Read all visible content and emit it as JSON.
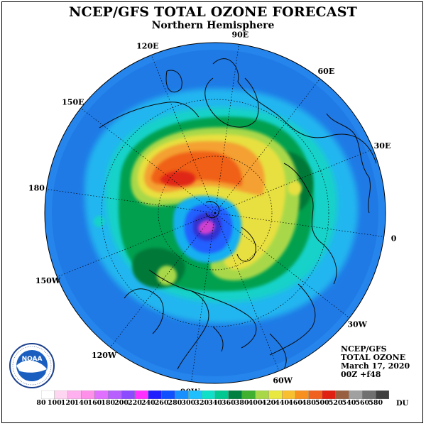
{
  "title": "NCEP/GFS TOTAL OZONE FORECAST",
  "subtitle": "Northern Hemisphere",
  "lon_labels": [
    "90E",
    "60E",
    "30E",
    "0",
    "30W",
    "60W",
    "90W",
    "120W",
    "150W",
    "180",
    "150E",
    "120E"
  ],
  "info": {
    "line1": "NCEP/GFS",
    "line2": "TOTAL OZONE",
    "line3": "March 17, 2020",
    "line4": "00Z +f48"
  },
  "scale": {
    "ticks": [
      "80",
      "100",
      "120",
      "140",
      "160",
      "180",
      "200",
      "220",
      "240",
      "260",
      "280",
      "300",
      "320",
      "340",
      "360",
      "380",
      "400",
      "420",
      "440",
      "460",
      "480",
      "500",
      "520",
      "540",
      "560",
      "580"
    ],
    "unit": "DU",
    "colors": [
      "#ffffff",
      "#ffd6f2",
      "#ffb0ee",
      "#ff90ea",
      "#e070ff",
      "#b860ff",
      "#8c4bff",
      "#ff30ff",
      "#2020ff",
      "#1050ff",
      "#1890ff",
      "#20c0ff",
      "#10e0c8",
      "#00c890",
      "#008040",
      "#40b030",
      "#a8d848",
      "#e8e840",
      "#f8c030",
      "#f89020",
      "#f06020",
      "#e02010",
      "#986040",
      "#a0a0a0",
      "#707070",
      "#404040"
    ]
  },
  "logo": {
    "name": "NOAA",
    "ring_text": "NATIONAL OCEANIC AND ATMOSPHERIC ADMINISTRATION · U.S. DEPARTMENT OF COMMERCE"
  },
  "palette": {
    "ocean_low": "#1f7fe8",
    "teal": "#18c8b8",
    "green": "#009040",
    "yellow": "#e8e040",
    "orange": "#f08020",
    "red": "#e02020",
    "blue_low": "#2040ff",
    "magenta": "#d030d0"
  }
}
